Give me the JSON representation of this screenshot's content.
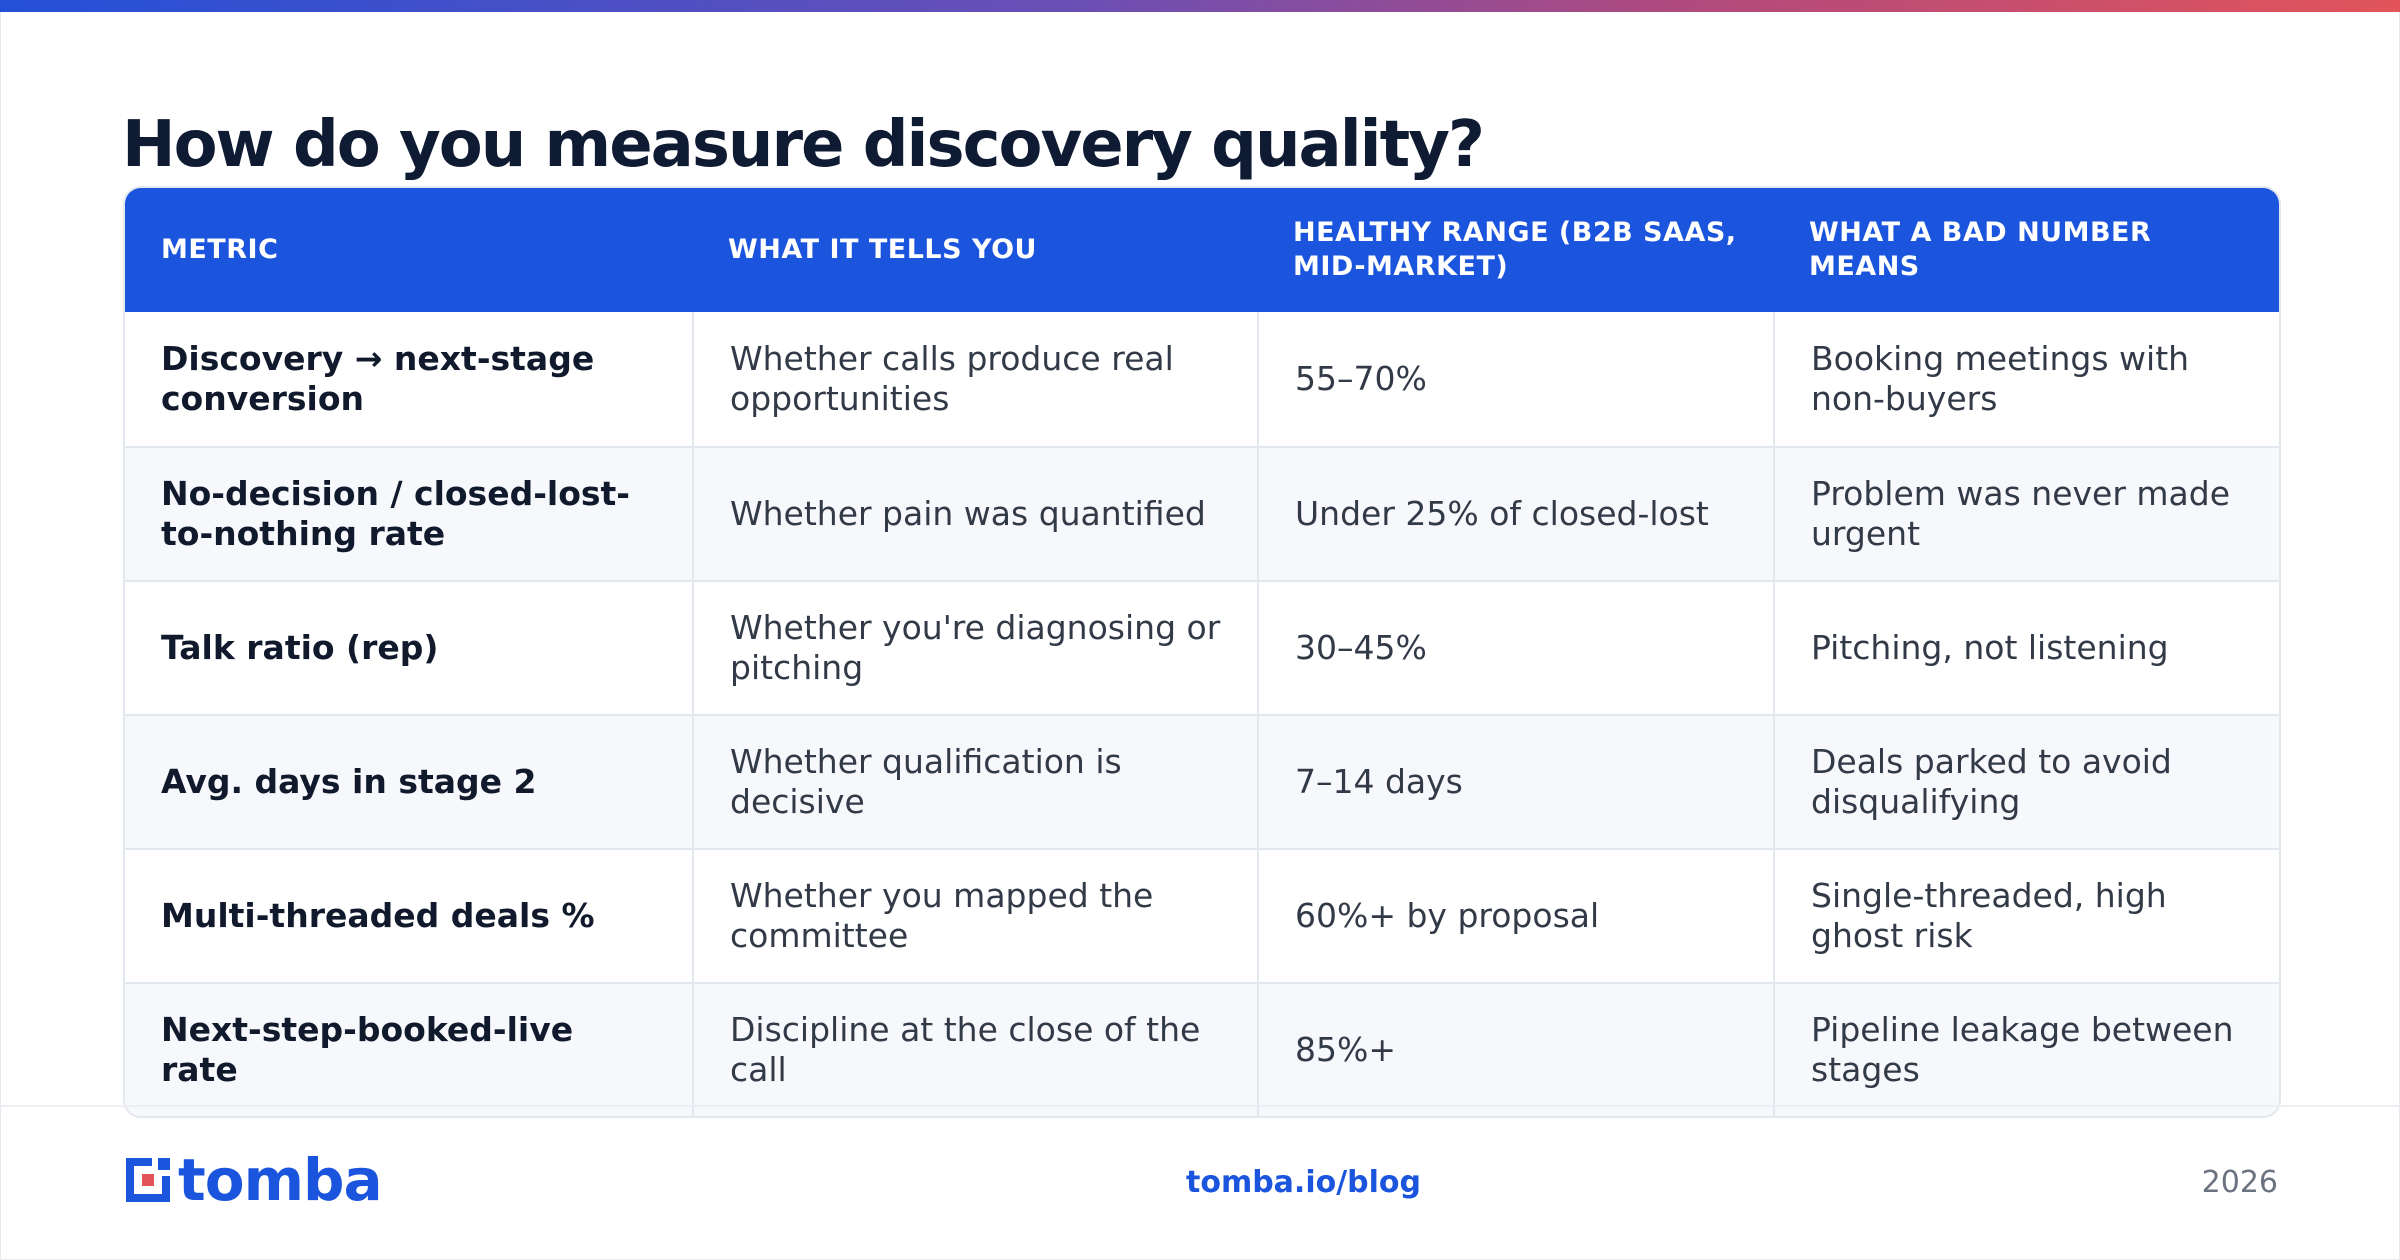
{
  "title": "How do you measure discovery quality?",
  "table": {
    "headers": [
      "METRIC",
      "WHAT IT TELLS YOU",
      "HEALTHY RANGE (B2B SAAS, MID-MARKET)",
      "WHAT A BAD NUMBER MEANS"
    ],
    "rows": [
      [
        "Discovery → next-stage conversion",
        "Whether calls produce real opportunities",
        "55–70%",
        "Booking meetings with non-buyers"
      ],
      [
        "No-decision / closed-lost-to-nothing rate",
        "Whether pain was quantified",
        "Under 25% of closed-lost",
        "Problem was never made urgent"
      ],
      [
        "Talk ratio (rep)",
        "Whether you're diagnosing or pitching",
        "30–45%",
        "Pitching, not listening"
      ],
      [
        "Avg. days in stage 2",
        "Whether qualification is decisive",
        "7–14 days",
        "Deals parked to avoid disqualifying"
      ],
      [
        "Multi-threaded deals %",
        "Whether you mapped the committee",
        "60%+ by proposal",
        "Single-threaded, high ghost risk"
      ],
      [
        "Next-step-booked-live rate",
        "Discipline at the close of the call",
        "85%+",
        "Pipeline leakage between stages"
      ]
    ]
  },
  "footer": {
    "logo_text": "tomba",
    "link": "tomba.io/blog",
    "year": "2026"
  },
  "colors": {
    "accent": "#1b55dd",
    "title": "#0f1a33",
    "gradient": [
      "#2350d8",
      "#e2545a"
    ]
  }
}
